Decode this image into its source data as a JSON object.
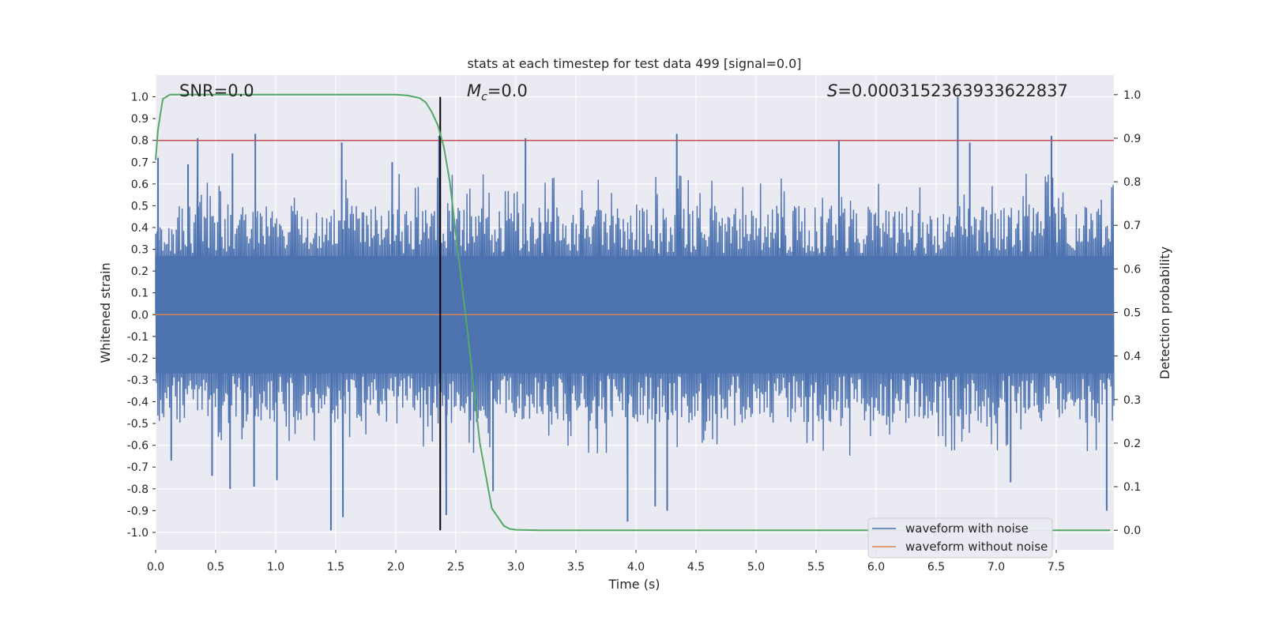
{
  "chart_data": {
    "type": "line",
    "title": "stats at each timestep for test data 499 [signal=0.0]",
    "xlabel": "Time (s)",
    "ylabel_left": "Whitened strain",
    "ylabel_right": "Detection probability",
    "xlim": [
      0.0,
      7.98
    ],
    "ylim_left": [
      -1.08,
      1.1
    ],
    "ylim_right": [
      -0.045,
      1.045
    ],
    "x_ticks": [
      "0.0",
      "0.5",
      "1.0",
      "1.5",
      "2.0",
      "2.5",
      "3.0",
      "3.5",
      "4.0",
      "4.5",
      "5.0",
      "5.5",
      "6.0",
      "6.5",
      "7.0",
      "7.5"
    ],
    "y_ticks_left": [
      "1.0",
      "0.9",
      "0.8",
      "0.7",
      "0.6",
      "0.5",
      "0.4",
      "0.3",
      "0.2",
      "0.1",
      "0.0",
      "-0.1",
      "-0.2",
      "-0.3",
      "-0.4",
      "-0.5",
      "-0.6",
      "-0.7",
      "-0.8",
      "-0.9",
      "-1.0"
    ],
    "y_ticks_right": [
      "1.0",
      "0.9",
      "0.8",
      "0.7",
      "0.6",
      "0.5",
      "0.4",
      "0.3",
      "0.2",
      "0.1",
      "0.0"
    ],
    "annotations": {
      "snr": "SNR=0.0",
      "mc_symbol": "M",
      "mc_subscript": "c",
      "mc_value": "=0.0",
      "s_symbol": "S",
      "s_value": "=0.000315236393362283​7"
    },
    "threshold_line": {
      "axis": "left",
      "y": 0.8,
      "color": "#c44e52"
    },
    "vertical_marker": {
      "x": 2.37,
      "color": "#000000"
    },
    "series": [
      {
        "name": "waveform with noise",
        "axis": "left",
        "color": "#4c72b0",
        "description": "dense noise samples roughly between -0.5 and 0.5 with spikes",
        "spikes": [
          {
            "x": 0.02,
            "y": 0.72
          },
          {
            "x": 0.13,
            "y": -0.67
          },
          {
            "x": 0.27,
            "y": 0.69
          },
          {
            "x": 0.35,
            "y": 0.81
          },
          {
            "x": 0.47,
            "y": -0.74
          },
          {
            "x": 0.62,
            "y": -0.8
          },
          {
            "x": 0.64,
            "y": 0.74
          },
          {
            "x": 0.83,
            "y": 0.83
          },
          {
            "x": 0.82,
            "y": -0.79
          },
          {
            "x": 1.01,
            "y": -0.76
          },
          {
            "x": 1.46,
            "y": -0.99
          },
          {
            "x": 1.56,
            "y": -0.93
          },
          {
            "x": 1.55,
            "y": 0.79
          },
          {
            "x": 1.97,
            "y": 0.7
          },
          {
            "x": 2.36,
            "y": 0.82
          },
          {
            "x": 2.42,
            "y": -0.92
          },
          {
            "x": 2.81,
            "y": -0.81
          },
          {
            "x": 3.08,
            "y": 0.81
          },
          {
            "x": 3.93,
            "y": -0.95
          },
          {
            "x": 4.34,
            "y": 0.83
          },
          {
            "x": 4.16,
            "y": -0.88
          },
          {
            "x": 4.26,
            "y": -0.9
          },
          {
            "x": 5.69,
            "y": 0.8
          },
          {
            "x": 6.68,
            "y": 1.0
          },
          {
            "x": 6.78,
            "y": 0.79
          },
          {
            "x": 7.12,
            "y": -0.77
          },
          {
            "x": 7.46,
            "y": 0.82
          },
          {
            "x": 7.92,
            "y": -0.9
          }
        ]
      },
      {
        "name": "waveform without noise",
        "axis": "left",
        "color": "#dd8452",
        "x": [
          0.0,
          7.98
        ],
        "y": [
          0.0,
          0.0
        ]
      },
      {
        "name": "detection probability",
        "axis": "right",
        "color": "#55a868",
        "x": [
          0.0,
          0.02,
          0.06,
          0.12,
          0.2,
          0.5,
          1.0,
          1.5,
          2.0,
          2.1,
          2.2,
          2.25,
          2.3,
          2.35,
          2.4,
          2.45,
          2.5,
          2.6,
          2.7,
          2.8,
          2.85,
          2.9,
          2.95,
          3.0,
          3.2,
          4.0,
          5.0,
          6.0,
          7.0,
          7.95
        ],
        "y": [
          0.85,
          0.92,
          0.99,
          1.0,
          1.0,
          1.0,
          1.0,
          1.0,
          1.0,
          0.998,
          0.992,
          0.982,
          0.96,
          0.93,
          0.88,
          0.8,
          0.68,
          0.45,
          0.2,
          0.05,
          0.03,
          0.01,
          0.003,
          0.001,
          0.0,
          0.0,
          0.0,
          0.0,
          0.0,
          0.0
        ]
      }
    ],
    "legend": {
      "placement": "lower-right",
      "entries": [
        {
          "label": "waveform with noise",
          "color": "#4c72b0"
        },
        {
          "label": "waveform without noise",
          "color": "#dd8452"
        }
      ]
    },
    "grid": true,
    "background": "#eaeaf2"
  }
}
